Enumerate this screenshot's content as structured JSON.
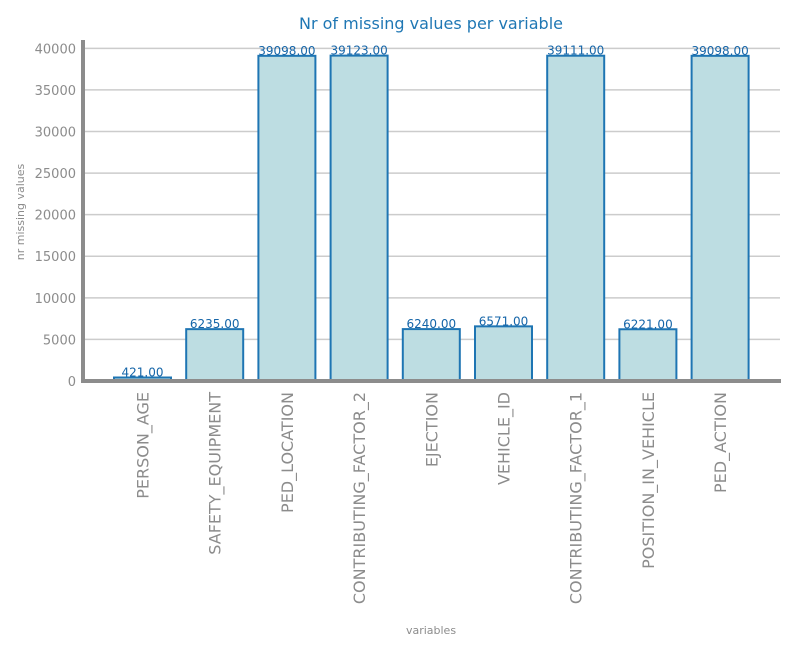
{
  "chart_data": {
    "type": "bar",
    "title": "Nr of missing values per variable",
    "xlabel": "variables",
    "ylabel": "nr missing values",
    "categories": [
      "PERSON_AGE",
      "SAFETY_EQUIPMENT",
      "PED_LOCATION",
      "CONTRIBUTING_FACTOR_2",
      "EJECTION",
      "VEHICLE_ID",
      "CONTRIBUTING_FACTOR_1",
      "POSITION_IN_VEHICLE",
      "PED_ACTION"
    ],
    "values": [
      421,
      6235,
      39098,
      39123,
      6240,
      6571,
      39111,
      6221,
      39098
    ],
    "data_labels": [
      "421.00",
      "6235.00",
      "39098.00",
      "39123.00",
      "6240.00",
      "6571.00",
      "39111.00",
      "6221.00",
      "39098.00"
    ],
    "ylim": [
      0,
      41000
    ],
    "yticks": [
      0,
      5000,
      10000,
      15000,
      20000,
      25000,
      30000,
      35000,
      40000
    ],
    "grid": true,
    "colors": {
      "bar_fill": "#bddde2",
      "bar_edge": "#1e75b3",
      "title": "#1f77b4",
      "axis": "#8c8c8c",
      "grid": "#cccccc",
      "data_label": "#1565a8"
    }
  }
}
